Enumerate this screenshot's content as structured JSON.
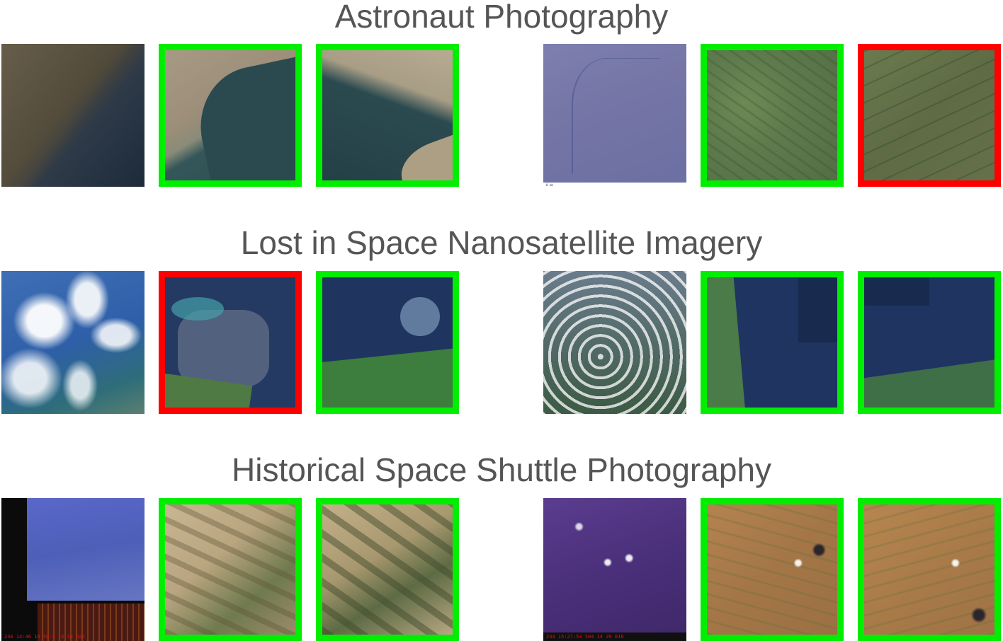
{
  "sections": [
    {
      "title": "Astronaut Photography",
      "tiles": [
        {
          "kind": "query",
          "frame": "none"
        },
        {
          "kind": "match",
          "frame": "green"
        },
        {
          "kind": "match",
          "frame": "green"
        },
        {
          "kind": "query",
          "frame": "none"
        },
        {
          "kind": "match",
          "frame": "green"
        },
        {
          "kind": "match",
          "frame": "red"
        }
      ]
    },
    {
      "title": "Lost in Space Nanosatellite Imagery",
      "tiles": [
        {
          "kind": "query",
          "frame": "none"
        },
        {
          "kind": "match",
          "frame": "red"
        },
        {
          "kind": "match",
          "frame": "green"
        },
        {
          "kind": "query",
          "frame": "none"
        },
        {
          "kind": "match",
          "frame": "green"
        },
        {
          "kind": "match",
          "frame": "green"
        }
      ]
    },
    {
      "title": "Historical Space Shuttle Photography",
      "tiles": [
        {
          "kind": "query",
          "frame": "none",
          "caption": "246  14:46  19   50  4  14      38 024"
        },
        {
          "kind": "match",
          "frame": "green"
        },
        {
          "kind": "match",
          "frame": "green"
        },
        {
          "kind": "query",
          "frame": "none",
          "caption": "244  15:27:53   504  14      39 018"
        },
        {
          "kind": "match",
          "frame": "green"
        },
        {
          "kind": "match",
          "frame": "green"
        }
      ]
    }
  ],
  "colors": {
    "correct_frame": "#00ee00",
    "incorrect_frame": "#ff0000",
    "title_text": "#555555",
    "background": "#ffffff"
  }
}
